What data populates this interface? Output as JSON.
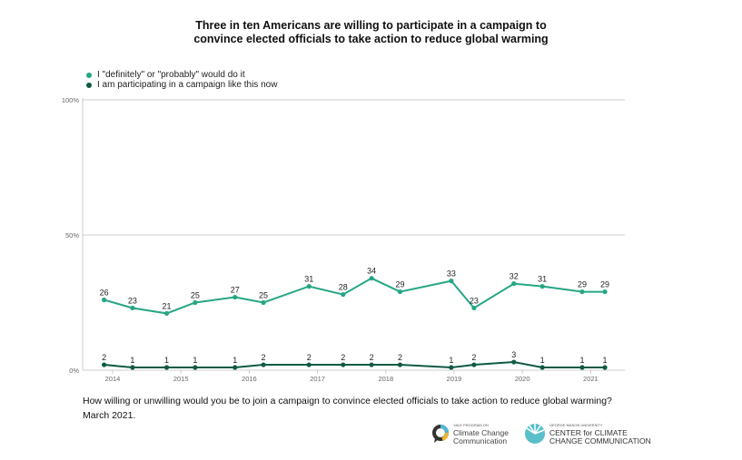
{
  "chart_data": {
    "type": "line",
    "title": "Three in ten Americans are willing to participate in a campaign to convince elected officials to take action to reduce global warming",
    "title_lines": [
      "Three in ten Americans are willing to participate in a campaign to",
      "convince elected officials to take action to reduce global warming"
    ],
    "xlabel": "",
    "ylabel": "",
    "ylim": [
      0,
      100
    ],
    "y_ticks": [
      "0%",
      "50%",
      "100%"
    ],
    "x_ticks": [
      "2014",
      "2015",
      "2016",
      "2017",
      "2018",
      "2019",
      "2020",
      "2021"
    ],
    "x": [
      "2013-11",
      "2014-04",
      "2014-10",
      "2015-03",
      "2015-10",
      "2016-03",
      "2016-11",
      "2017-05",
      "2017-10",
      "2018-03",
      "2018-12",
      "2019-04",
      "2019-11",
      "2020-04",
      "2020-11",
      "2021-03"
    ],
    "grid": "horizontal at 50% and 100%",
    "legend_position": "top-left",
    "series": [
      {
        "name": "I \"definitely\" or \"probably\" would do it",
        "color": "#26a685",
        "values": [
          26,
          23,
          21,
          25,
          27,
          25,
          31,
          28,
          34,
          29,
          33,
          23,
          32,
          31,
          29,
          29
        ]
      },
      {
        "name": "I am participating in a campaign like this now",
        "color": "#0f5a45",
        "values": [
          2,
          1,
          1,
          1,
          1,
          2,
          2,
          2,
          2,
          2,
          1,
          2,
          3,
          1,
          1,
          1
        ]
      }
    ]
  },
  "footer": {
    "question": "How willing or unwilling would you be to join a campaign to convince elected officials to take action to reduce global warming?",
    "date": "March 2021."
  },
  "logos": {
    "yale_small": "YALE PROGRAM ON",
    "yale_main": "Climate Change Communication",
    "gmu_small": "GEORGE MASON UNIVERSITY",
    "gmu_main": "CENTER for CLIMATE CHANGE COMMUNICATION"
  }
}
